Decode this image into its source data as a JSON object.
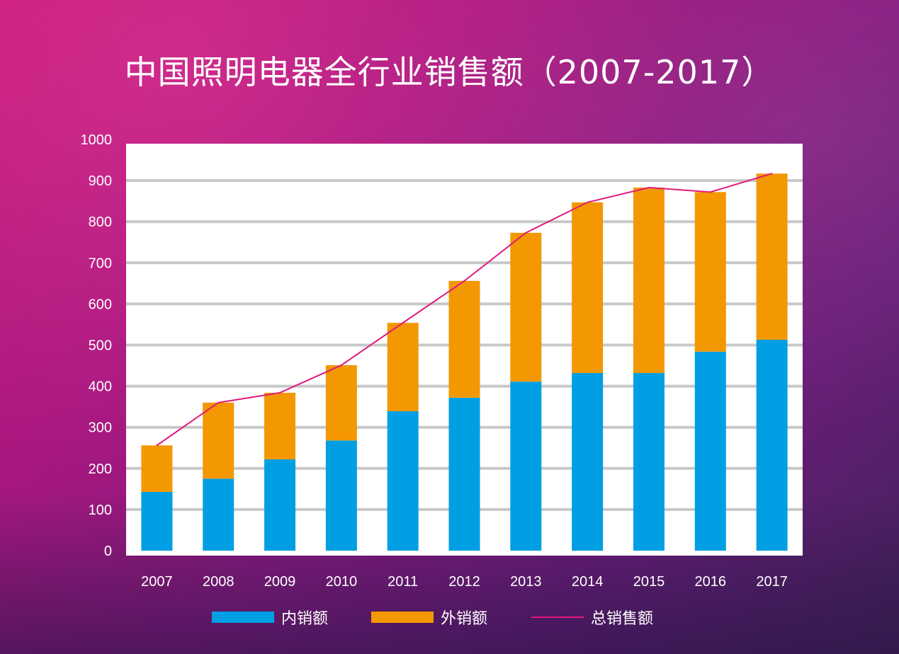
{
  "chart_data": {
    "type": "bar",
    "stacked": true,
    "title": "中国照明电器全行业销售额（2007-2017）",
    "categories": [
      "2007",
      "2008",
      "2009",
      "2010",
      "2011",
      "2012",
      "2013",
      "2014",
      "2015",
      "2016",
      "2017"
    ],
    "series": [
      {
        "name": "内销额",
        "type": "bar",
        "color": "#009fe3",
        "values": [
          143,
          175,
          222,
          268,
          339,
          372,
          411,
          432,
          432,
          484,
          513
        ]
      },
      {
        "name": "外销额",
        "type": "bar",
        "color": "#f39800",
        "values": [
          113,
          185,
          162,
          183,
          215,
          284,
          362,
          415,
          451,
          388,
          404
        ]
      },
      {
        "name": "总销售额",
        "type": "line",
        "color": "#e0197d",
        "values": [
          256,
          360,
          384,
          451,
          554,
          656,
          773,
          847,
          883,
          872,
          917
        ]
      }
    ],
    "ylim": [
      0,
      1000
    ],
    "yticks": [
      "0",
      "100",
      "200",
      "300",
      "400",
      "500",
      "600",
      "700",
      "800",
      "900",
      "1000"
    ],
    "grid": true,
    "legend": "bottom"
  }
}
